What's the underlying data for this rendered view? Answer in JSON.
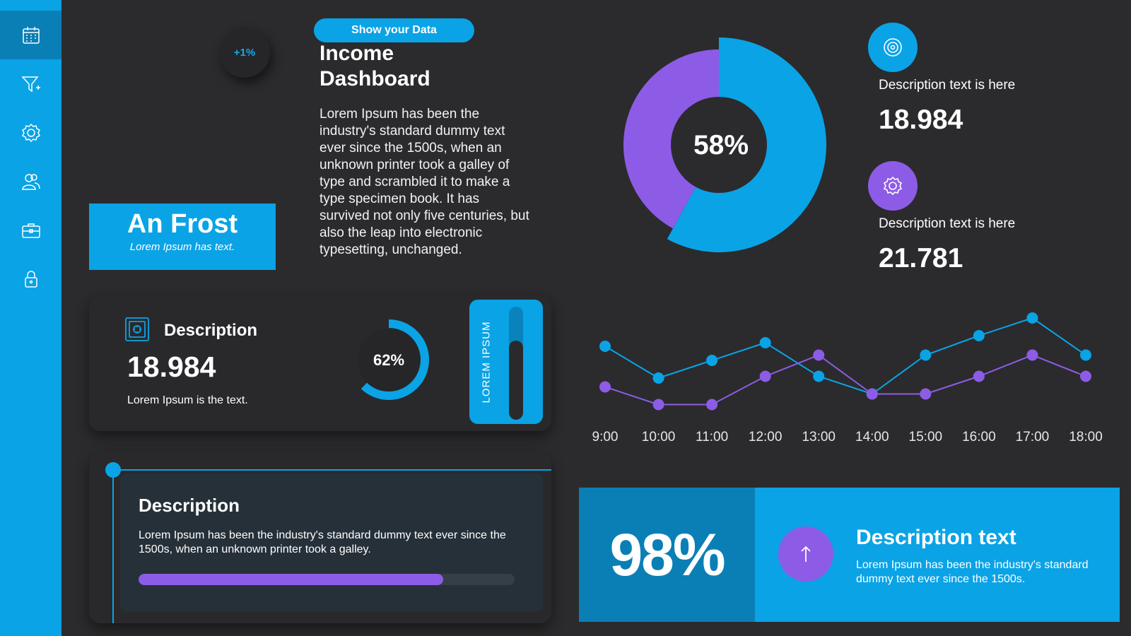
{
  "sidebar": {
    "items": [
      {
        "icon": "calendar-icon",
        "active": true
      },
      {
        "icon": "funnel-icon",
        "active": false
      },
      {
        "icon": "gear-icon",
        "active": false
      },
      {
        "icon": "users-icon",
        "active": false
      },
      {
        "icon": "briefcase-icon",
        "active": false
      },
      {
        "icon": "lock-icon",
        "active": false
      }
    ]
  },
  "header": {
    "chip_label": "Show your  Data",
    "title_line1": "Income",
    "title_line2": "Dashboard",
    "body": "Lorem Ipsum has been the industry's standard dummy text ever since the 1500s, when an unknown printer took a galley of type and scrambled it to make a type specimen book. It has survived not only five centuries, but also the leap into electronic typesetting, unchanged."
  },
  "badge": {
    "label": "+1%"
  },
  "profile": {
    "name": "An Frost",
    "subtitle": "Lorem Ipsum has text."
  },
  "stat_card": {
    "icon": "safe-icon",
    "title": "Description",
    "value": "18.984",
    "subtitle": "Lorem Ipsum is the text.",
    "ring_label": "62%",
    "ring_fraction": 0.62,
    "vertical_label": "LOREM IPSUM",
    "vertical_fraction": 0.7
  },
  "progress_card": {
    "title": "Description",
    "text": "Lorem Ipsum has been the industry's standard dummy text ever since the 1500s, when an unknown printer took a galley.",
    "progress_fraction": 0.81
  },
  "donut": {
    "label": "58%",
    "fraction": 0.58,
    "colors": {
      "primary": "#0aa3e6",
      "secondary": "#8d5ce6"
    }
  },
  "descriptions": [
    {
      "icon": "target-icon",
      "color": "#0aa3e6",
      "label": "Description text is here",
      "value": "18.984"
    },
    {
      "icon": "gear-icon",
      "color": "#8d5ce6",
      "label": "Description text is here",
      "value": "21.781"
    }
  ],
  "chart_data": {
    "type": "line",
    "x": [
      "9:00",
      "10:00",
      "11:00",
      "12:00",
      "13:00",
      "14:00",
      "15:00",
      "16:00",
      "17:00",
      "18:00"
    ],
    "series": [
      {
        "color": "#0aa3e6",
        "values": [
          7,
          5.2,
          6.2,
          7.2,
          5.3,
          4.3,
          6.5,
          7.6,
          8.6,
          6.5
        ]
      },
      {
        "color": "#8d5ce6",
        "values": [
          4.7,
          3.7,
          3.7,
          5.3,
          6.5,
          4.3,
          4.3,
          5.3,
          6.5,
          5.3
        ]
      }
    ],
    "ylim": [
      3,
      9
    ],
    "grid": false
  },
  "banner": {
    "percent": "98%",
    "icon": "arrow-up-icon",
    "title": "Description text",
    "text": "Lorem Ipsum has been the industry's standard dummy text ever since the 1500s."
  }
}
